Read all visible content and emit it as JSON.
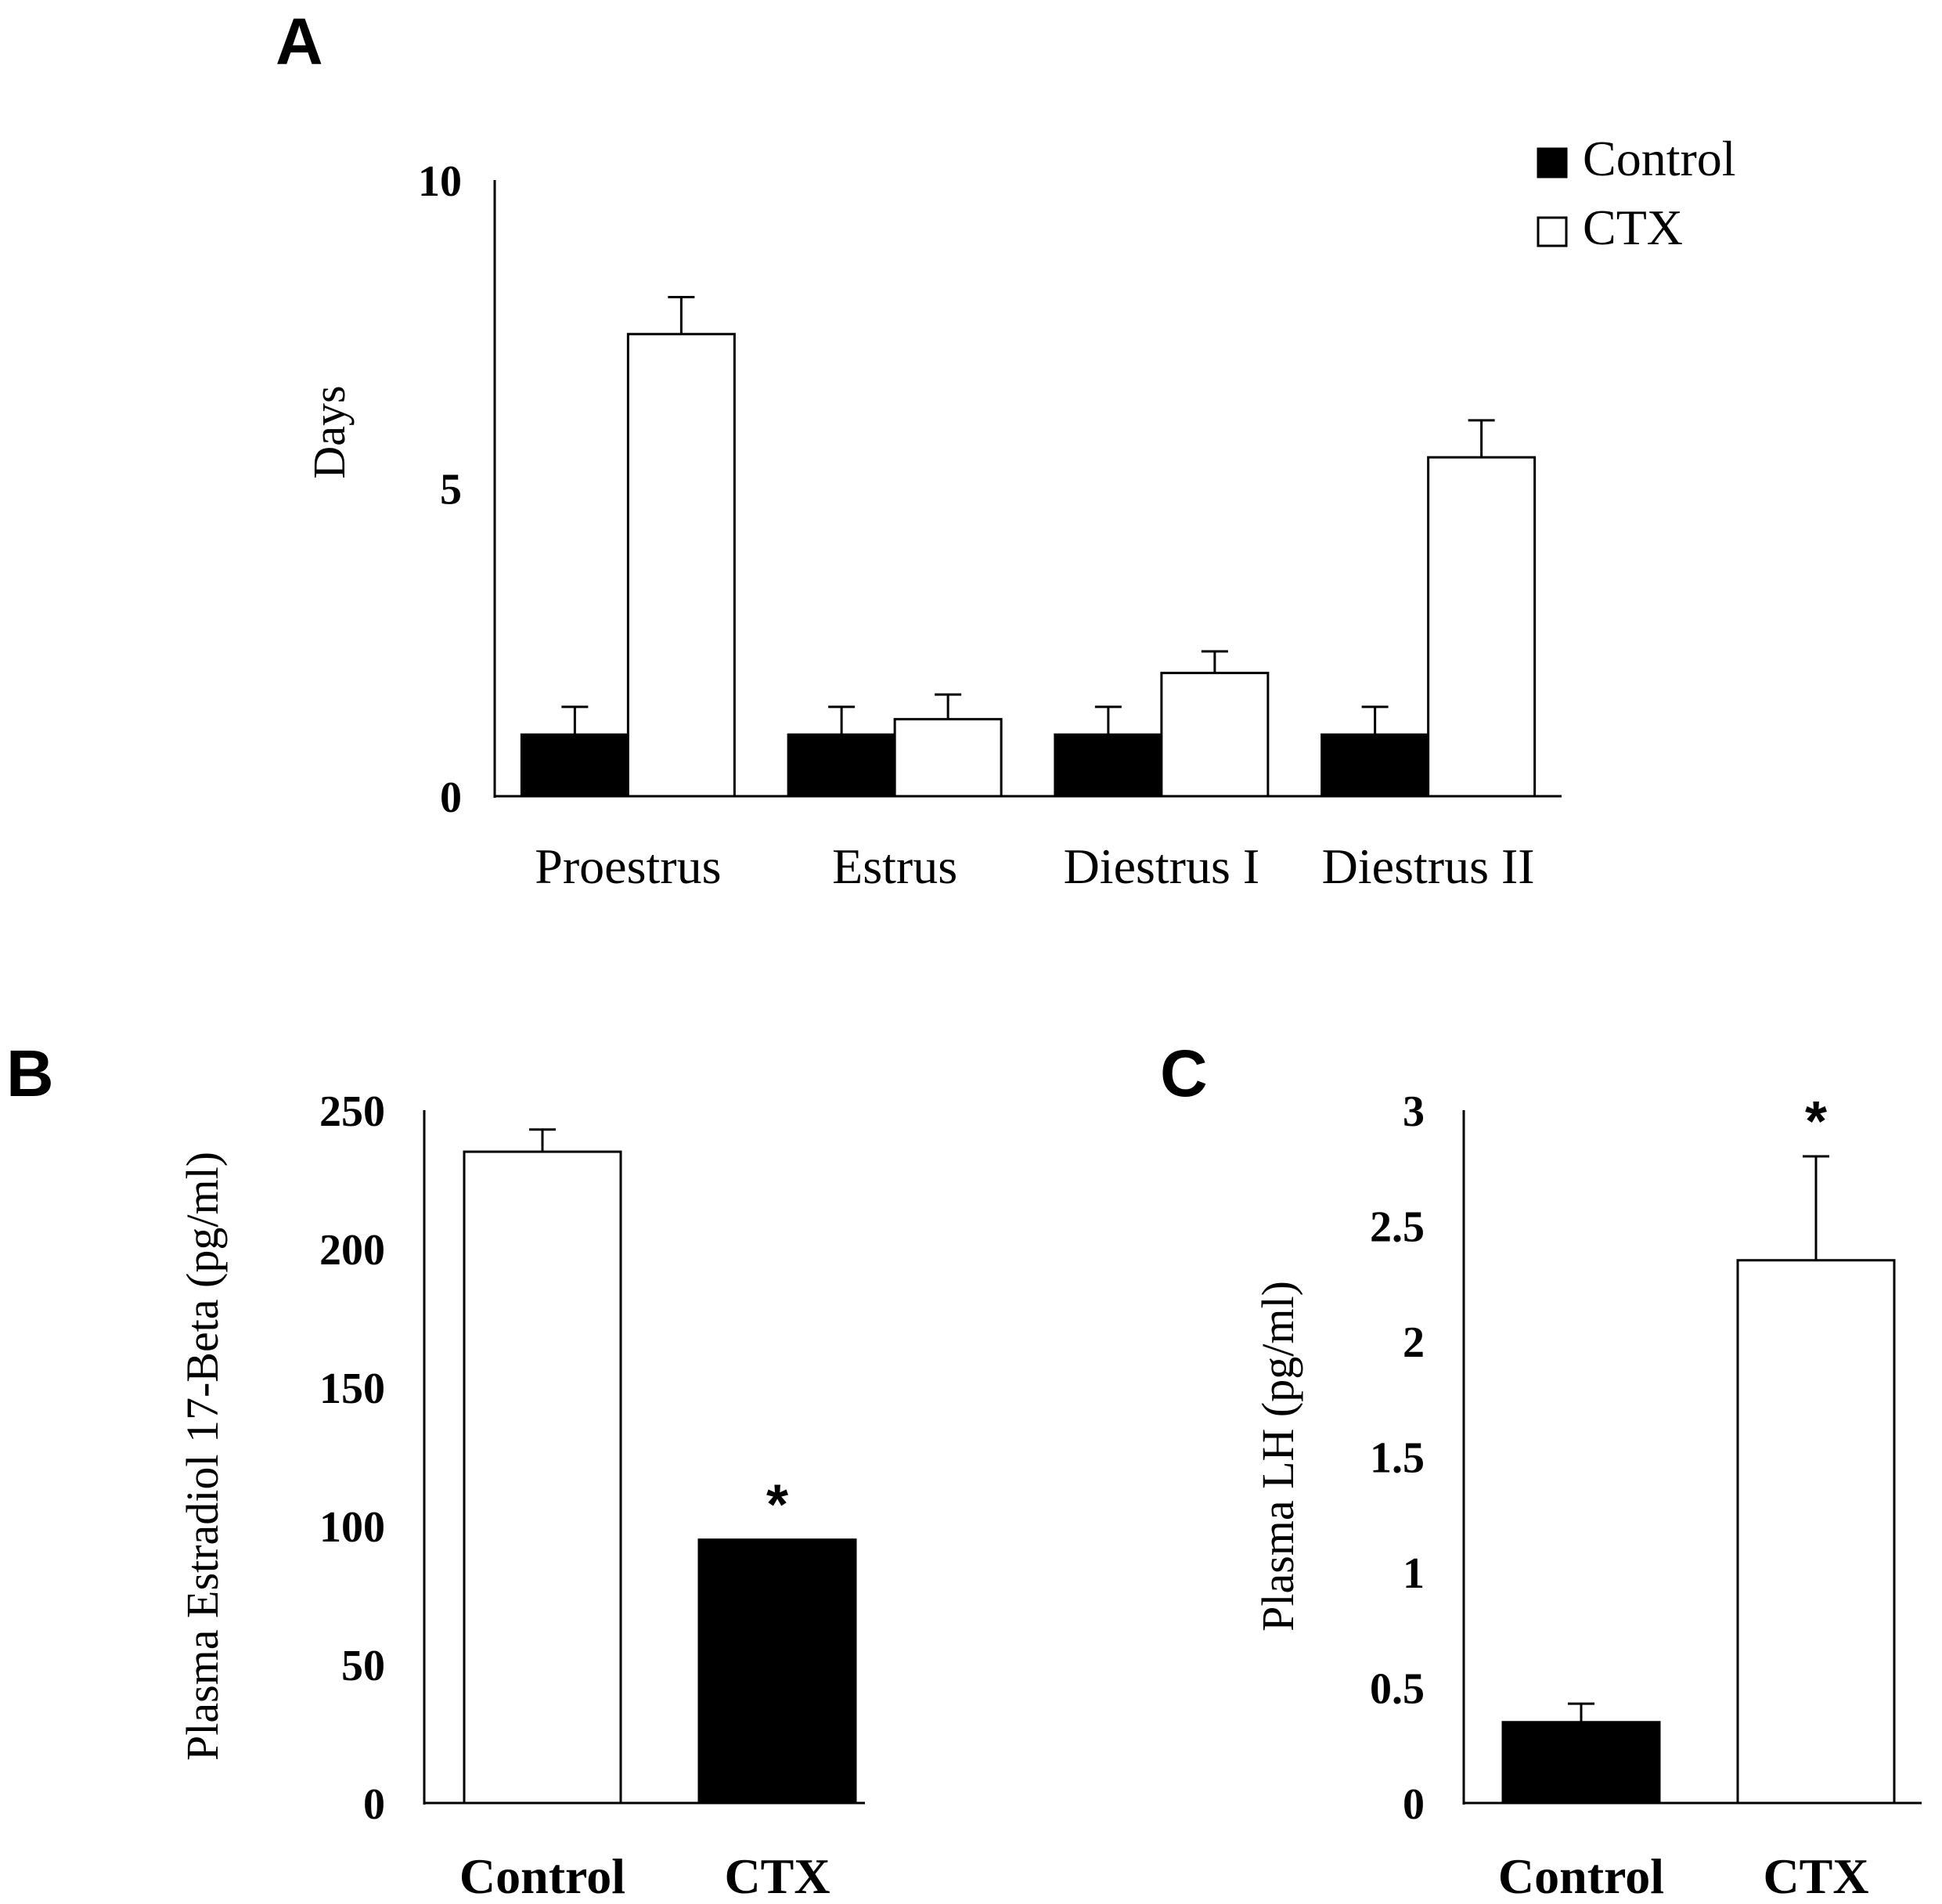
{
  "chart_data": [
    {
      "panel": "A",
      "type": "bar",
      "title": "",
      "xlabel": "",
      "ylabel": "Days",
      "ylim": [
        0,
        10
      ],
      "yticks": [
        "0",
        "5",
        "10"
      ],
      "categories": [
        "Proestrus",
        "Estrus",
        "Diestrus I",
        "Diestrus II"
      ],
      "series": [
        {
          "name": "Control",
          "color": "#000000",
          "values": [
            1.0,
            1.0,
            1.0,
            1.0
          ],
          "errors": [
            0.45,
            0.45,
            0.45,
            0.45
          ]
        },
        {
          "name": "CTX",
          "color": "#ffffff",
          "values": [
            7.5,
            1.25,
            2.0,
            5.5
          ],
          "errors": [
            0.6,
            0.4,
            0.35,
            0.6
          ]
        }
      ],
      "legend": {
        "position": "top-right"
      }
    },
    {
      "panel": "B",
      "type": "bar",
      "title": "",
      "xlabel": "",
      "ylabel": "Plasma Estradiol 17-Beta (pg/ml)",
      "ylim": [
        0,
        250
      ],
      "yticks": [
        "0",
        "50",
        "100",
        "150",
        "200",
        "250"
      ],
      "categories": [
        "Control",
        "CTX"
      ],
      "values": [
        235,
        95
      ],
      "errors": [
        8,
        0
      ],
      "fills": [
        "#ffffff",
        "#000000"
      ],
      "annotations": [
        "",
        "*"
      ]
    },
    {
      "panel": "C",
      "type": "bar",
      "title": "",
      "xlabel": "",
      "ylabel": "Plasma LH (pg/ml)",
      "ylim": [
        0,
        3
      ],
      "yticks": [
        "0",
        "0.5",
        "1",
        "1.5",
        "2",
        "2.5",
        "3"
      ],
      "categories": [
        "Control",
        "CTX"
      ],
      "values": [
        0.35,
        2.35
      ],
      "errors": [
        0.08,
        0.45
      ],
      "fills": [
        "#000000",
        "#ffffff"
      ],
      "annotations": [
        "",
        "*"
      ]
    }
  ]
}
